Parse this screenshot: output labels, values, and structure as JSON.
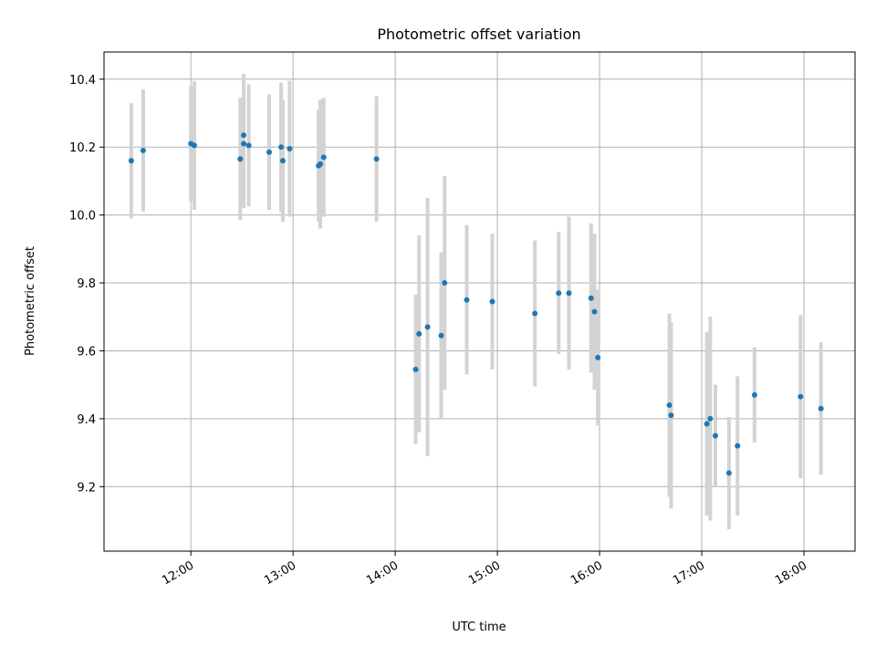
{
  "chart_data": {
    "type": "scatter",
    "title": "Photometric offset variation",
    "xlabel": "UTC time",
    "ylabel": "Photometric offset",
    "xlim": [
      "11:09",
      "18:30"
    ],
    "ylim": [
      9.01,
      10.48
    ],
    "grid": true,
    "x_ticks": [
      "12:00",
      "13:00",
      "14:00",
      "15:00",
      "16:00",
      "17:00",
      "18:00"
    ],
    "y_ticks": [
      9.2,
      9.4,
      9.6,
      9.8,
      10.0,
      10.2,
      10.4
    ],
    "y_tick_labels": [
      "9.2",
      "9.4",
      "9.6",
      "9.8",
      "10.0",
      "10.2",
      "10.4"
    ],
    "series": [
      {
        "marker_color": "#1f77b4",
        "errorbar_color": "#d3d3d3",
        "points": [
          {
            "x": "11:25",
            "y": 10.16,
            "err": 0.17
          },
          {
            "x": "11:32",
            "y": 10.19,
            "err": 0.18
          },
          {
            "x": "12:00",
            "y": 10.21,
            "err": 0.17
          },
          {
            "x": "12:02",
            "y": 10.205,
            "err": 0.19
          },
          {
            "x": "12:29",
            "y": 10.165,
            "err": 0.18
          },
          {
            "x": "12:31",
            "y": 10.235,
            "err": 0.18
          },
          {
            "x": "12:31",
            "y": 10.21,
            "err": 0.19
          },
          {
            "x": "12:34",
            "y": 10.205,
            "err": 0.18
          },
          {
            "x": "12:46",
            "y": 10.185,
            "err": 0.17
          },
          {
            "x": "12:53",
            "y": 10.2,
            "err": 0.19
          },
          {
            "x": "12:54",
            "y": 10.16,
            "err": 0.18
          },
          {
            "x": "12:58",
            "y": 10.195,
            "err": 0.2
          },
          {
            "x": "13:15",
            "y": 10.145,
            "err": 0.165
          },
          {
            "x": "13:16",
            "y": 10.15,
            "err": 0.19
          },
          {
            "x": "13:18",
            "y": 10.17,
            "err": 0.175
          },
          {
            "x": "13:49",
            "y": 10.165,
            "err": 0.185
          },
          {
            "x": "14:12",
            "y": 9.545,
            "err": 0.22
          },
          {
            "x": "14:14",
            "y": 9.65,
            "err": 0.29
          },
          {
            "x": "14:19",
            "y": 9.67,
            "err": 0.38
          },
          {
            "x": "14:27",
            "y": 9.645,
            "err": 0.245
          },
          {
            "x": "14:29",
            "y": 9.8,
            "err": 0.315
          },
          {
            "x": "14:42",
            "y": 9.75,
            "err": 0.22
          },
          {
            "x": "14:57",
            "y": 9.745,
            "err": 0.2
          },
          {
            "x": "15:22",
            "y": 9.71,
            "err": 0.215
          },
          {
            "x": "15:36",
            "y": 9.77,
            "err": 0.18
          },
          {
            "x": "15:42",
            "y": 9.77,
            "err": 0.225
          },
          {
            "x": "15:55",
            "y": 9.755,
            "err": 0.22
          },
          {
            "x": "15:57",
            "y": 9.715,
            "err": 0.23
          },
          {
            "x": "15:59",
            "y": 9.58,
            "err": 0.2
          },
          {
            "x": "16:41",
            "y": 9.44,
            "err": 0.27
          },
          {
            "x": "16:42",
            "y": 9.41,
            "err": 0.275
          },
          {
            "x": "17:03",
            "y": 9.385,
            "err": 0.27
          },
          {
            "x": "17:05",
            "y": 9.4,
            "err": 0.3
          },
          {
            "x": "17:08",
            "y": 9.35,
            "err": 0.15
          },
          {
            "x": "17:16",
            "y": 9.24,
            "err": 0.165
          },
          {
            "x": "17:21",
            "y": 9.32,
            "err": 0.205
          },
          {
            "x": "17:31",
            "y": 9.47,
            "err": 0.14
          },
          {
            "x": "17:58",
            "y": 9.465,
            "err": 0.24
          },
          {
            "x": "18:10",
            "y": 9.43,
            "err": 0.195
          }
        ]
      }
    ]
  }
}
